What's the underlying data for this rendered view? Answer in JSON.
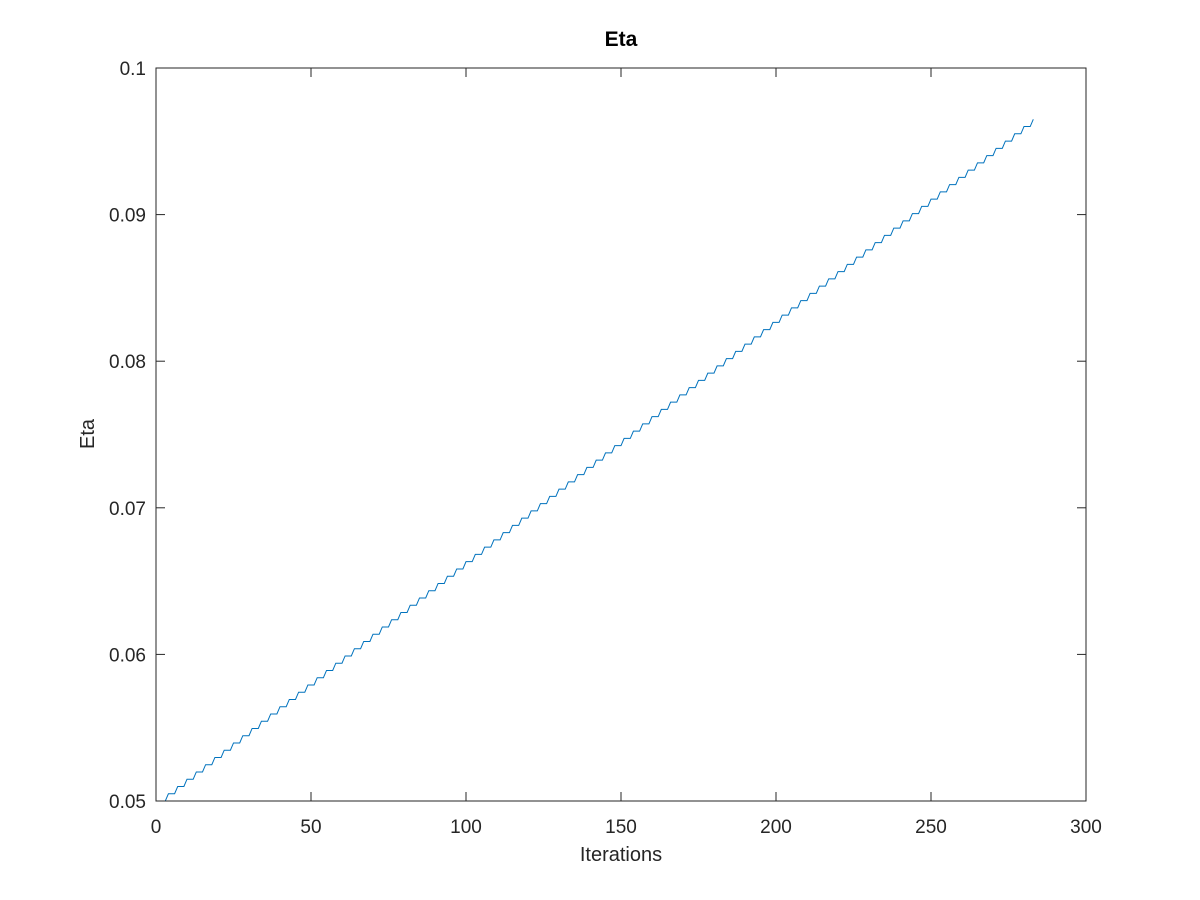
{
  "chart_data": {
    "type": "line",
    "title": "Eta",
    "xlabel": "Iterations",
    "ylabel": "Eta",
    "xlim": [
      0,
      300
    ],
    "ylim": [
      0.05,
      0.1
    ],
    "xticks": [
      0,
      50,
      100,
      150,
      200,
      250,
      300
    ],
    "xtick_labels": [
      "0",
      "50",
      "100",
      "150",
      "200",
      "250",
      "300"
    ],
    "yticks": [
      0.05,
      0.06,
      0.07,
      0.08,
      0.09,
      0.1
    ],
    "ytick_labels": [
      "0.05",
      "0.06",
      "0.07",
      "0.08",
      "0.09",
      "0.1"
    ],
    "grid": false,
    "line_color": "#0072bd",
    "series": [
      {
        "shape": "staircase",
        "x_start": 1,
        "x_end": 282,
        "y_start": 0.05,
        "y_end": 0.0965,
        "step_every_iterations": 3
      }
    ]
  }
}
